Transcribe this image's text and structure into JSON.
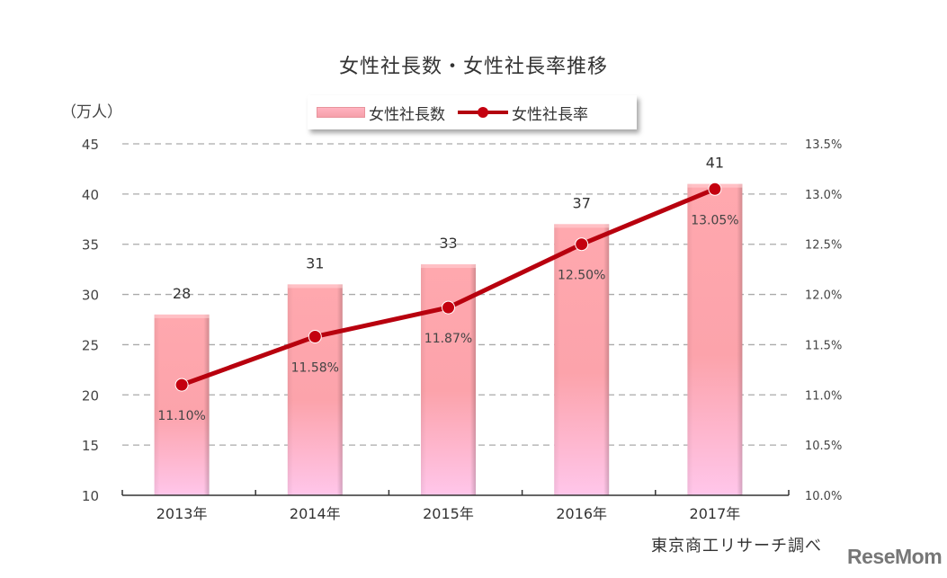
{
  "chart_data": {
    "type": "bar",
    "title": "女性社長数・女性社長率推移",
    "categories": [
      "2013年",
      "2014年",
      "2015年",
      "2016年",
      "2017年"
    ],
    "series": [
      {
        "name": "女性社長数",
        "type": "bar",
        "axis": "left",
        "values": [
          28,
          31,
          33,
          37,
          41
        ],
        "labels": [
          "28",
          "31",
          "33",
          "37",
          "41"
        ],
        "color": "#f8a4ab"
      },
      {
        "name": "女性社長率",
        "type": "line",
        "axis": "right",
        "values": [
          11.1,
          11.58,
          11.87,
          12.5,
          13.05
        ],
        "labels": [
          "11.10%",
          "11.58%",
          "11.87%",
          "12.50%",
          "13.05%"
        ],
        "color": "#b8000e"
      }
    ],
    "ylabel": "（万人）",
    "ylim": [
      10,
      45
    ],
    "yticks": [
      "45",
      "40",
      "35",
      "30",
      "25",
      "20",
      "15",
      "10"
    ],
    "y2lim": [
      10.0,
      13.5
    ],
    "y2ticks": [
      "13.5%",
      "13.0%",
      "12.5%",
      "12.0%",
      "11.5%",
      "11.0%",
      "10.5%",
      "10.0%"
    ],
    "grid": "dashed horizontal",
    "legend_position": "top",
    "source": "東京商工リサーチ調べ"
  },
  "title": "女性社長数・女性社長率推移",
  "unit_label": "（万人）",
  "legend": {
    "bar_label": "女性社長数",
    "line_label": "女性社長率"
  },
  "source": "東京商工リサーチ調べ",
  "watermark": "ReseMom"
}
